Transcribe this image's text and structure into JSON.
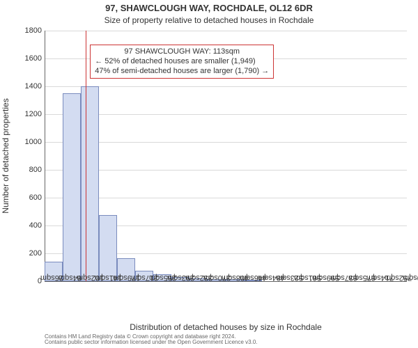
{
  "titles": {
    "line1": "97, SHAWCLOUGH WAY, ROCHDALE, OL12 6DR",
    "line2": "Size of property relative to detached houses in Rochdale",
    "line1_fontsize": 13,
    "line2_fontsize": 12
  },
  "chart": {
    "type": "histogram",
    "xlabel": "Distribution of detached houses by size in Rochdale",
    "ylabel": "Number of detached properties",
    "label_fontsize": 12,
    "tick_fontsize": 11,
    "background_color": "#ffffff",
    "grid_color": "#d9d9d9",
    "grid_width": 1,
    "axis_color": "#666666",
    "bar_fill": "#d3dcf1",
    "bar_border": "#7a8bbd",
    "ylim": [
      0,
      1800
    ],
    "ytick_step": 200,
    "yticks": [
      0,
      200,
      400,
      600,
      800,
      1000,
      1200,
      1400,
      1600,
      1800
    ],
    "x_bin_start": 26,
    "x_bin_width": 38.2,
    "xtick_labels": [
      "26sqm",
      "64sqm",
      "102sqm",
      "141sqm",
      "179sqm",
      "217sqm",
      "255sqm",
      "293sqm",
      "332sqm",
      "370sqm",
      "408sqm",
      "446sqm",
      "484sqm",
      "523sqm",
      "561sqm",
      "599sqm",
      "637sqm",
      "675sqm",
      "714sqm",
      "752sqm",
      "790sqm"
    ],
    "bars": [
      {
        "x0": 26,
        "value": 140
      },
      {
        "x0": 64,
        "value": 1350
      },
      {
        "x0": 102,
        "value": 1400
      },
      {
        "x0": 141,
        "value": 475
      },
      {
        "x0": 179,
        "value": 165
      },
      {
        "x0": 217,
        "value": 75
      },
      {
        "x0": 255,
        "value": 48
      },
      {
        "x0": 293,
        "value": 28
      },
      {
        "x0": 332,
        "value": 20
      },
      {
        "x0": 370,
        "value": 14
      },
      {
        "x0": 408,
        "value": 14
      },
      {
        "x0": 446,
        "value": 12
      },
      {
        "x0": 484,
        "value": 0
      },
      {
        "x0": 523,
        "value": 0
      },
      {
        "x0": 561,
        "value": 0
      },
      {
        "x0": 599,
        "value": 0
      },
      {
        "x0": 637,
        "value": 0
      },
      {
        "x0": 675,
        "value": 0
      },
      {
        "x0": 714,
        "value": 0
      },
      {
        "x0": 752,
        "value": 0
      }
    ],
    "reference_line": {
      "x": 113,
      "color": "#cc3333",
      "width": 1
    },
    "x_range": [
      26,
      790
    ]
  },
  "annotation": {
    "lines": [
      "97 SHAWCLOUGH WAY: 113sqm",
      "← 52% of detached houses are smaller (1,949)",
      "47% of semi-detached houses are larger (1,790) →"
    ],
    "border_color": "#cc3333",
    "border_width": 1,
    "fontsize": 11
  },
  "attribution": {
    "line1": "Contains HM Land Registry data © Crown copyright and database right 2024.",
    "line2": "Contains public sector information licensed under the Open Government Licence v3.0.",
    "fontsize": 8,
    "color": "#666666"
  }
}
